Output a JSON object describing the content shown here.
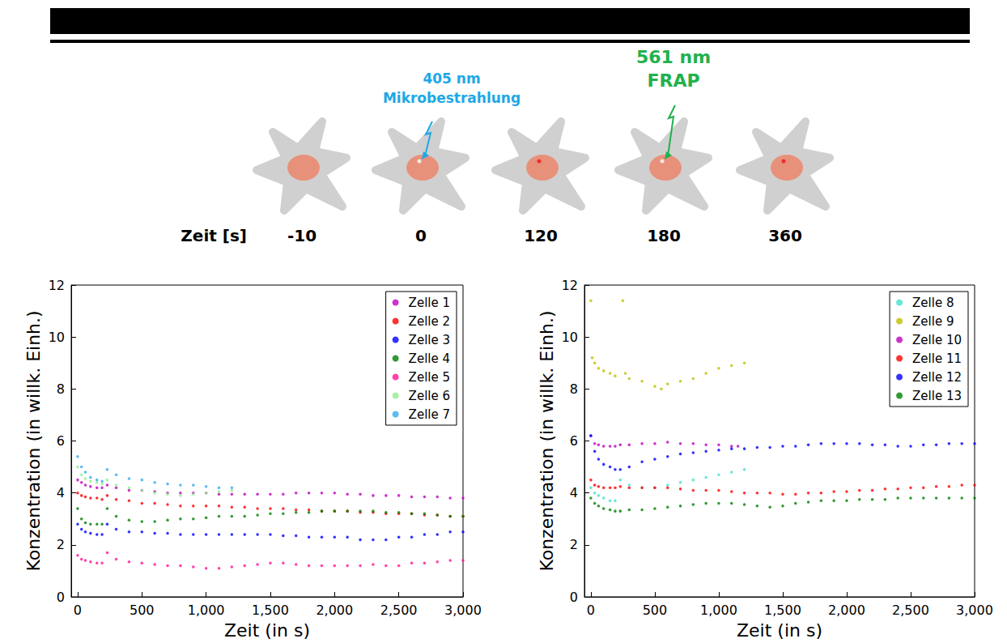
{
  "diagram": {
    "time_label": "Zeit [s]",
    "times": [
      -10,
      0,
      120,
      180,
      360
    ],
    "annotations": [
      {
        "lines": [
          "405 nm",
          "Mikrobestrahlung"
        ],
        "time": 0,
        "color": "#1ea8e6"
      },
      {
        "lines": [
          "561 nm",
          "FRAP"
        ],
        "time": 180,
        "color": "#22b14c"
      }
    ]
  },
  "chart_data": [
    {
      "type": "scatter",
      "x_label": "Zeit (in s)",
      "y_label": "Konzentration (in willk. Einh.)",
      "xlim": [
        -50,
        3000
      ],
      "xticks": [
        0,
        500,
        1000,
        1500,
        2000,
        2500,
        3000
      ],
      "ylim": [
        0,
        12
      ],
      "yticks": [
        0,
        2,
        4,
        6,
        8,
        10,
        12
      ],
      "grid": false,
      "legend": "upper right",
      "marker": "circle",
      "series": [
        {
          "name": "Zelle 1",
          "color": "#bf00bf",
          "x": [
            0,
            30,
            60,
            100,
            150,
            190,
            230,
            300,
            400,
            500,
            600,
            700,
            800,
            900,
            1000,
            1100,
            1200,
            1300,
            1400,
            1500,
            1600,
            1700,
            1800,
            1900,
            2000,
            2100,
            2200,
            2300,
            2400,
            2500,
            2600,
            2700,
            2800,
            2900,
            3000
          ],
          "values": [
            4.5,
            4.4,
            4.3,
            4.25,
            4.2,
            4.2,
            4.3,
            4.2,
            4.1,
            4.1,
            4.05,
            4.0,
            4.0,
            4.0,
            4.0,
            3.95,
            3.95,
            3.95,
            3.95,
            3.95,
            3.95,
            4.0,
            4.0,
            4.0,
            4.0,
            3.95,
            3.95,
            3.9,
            3.9,
            3.9,
            3.85,
            3.85,
            3.85,
            3.8,
            3.8
          ]
        },
        {
          "name": "Zelle 2",
          "color": "#ff0000",
          "x": [
            0,
            30,
            60,
            100,
            150,
            190,
            230,
            300,
            400,
            500,
            600,
            700,
            800,
            900,
            1000,
            1100,
            1200,
            1300,
            1400,
            1500,
            1600,
            1700,
            1800,
            1900,
            2000,
            2100,
            2200,
            2300,
            2400,
            2500,
            2600,
            2700,
            2800,
            2900,
            3000
          ],
          "values": [
            4.0,
            3.9,
            3.85,
            3.8,
            3.8,
            3.75,
            3.9,
            3.75,
            3.7,
            3.6,
            3.6,
            3.55,
            3.5,
            3.5,
            3.5,
            3.5,
            3.45,
            3.45,
            3.4,
            3.4,
            3.4,
            3.35,
            3.35,
            3.3,
            3.3,
            3.3,
            3.25,
            3.25,
            3.2,
            3.2,
            3.2,
            3.15,
            3.15,
            3.1,
            3.1
          ]
        },
        {
          "name": "Zelle 3",
          "color": "#0000ff",
          "x": [
            0,
            30,
            60,
            100,
            150,
            190,
            230,
            300,
            400,
            500,
            600,
            700,
            800,
            900,
            1000,
            1100,
            1200,
            1300,
            1400,
            1500,
            1600,
            1700,
            1800,
            1900,
            2000,
            2100,
            2200,
            2300,
            2400,
            2500,
            2600,
            2700,
            2800,
            2900,
            3000
          ],
          "values": [
            2.8,
            2.6,
            2.5,
            2.45,
            2.4,
            2.4,
            2.8,
            2.6,
            2.5,
            2.5,
            2.45,
            2.45,
            2.4,
            2.4,
            2.4,
            2.4,
            2.4,
            2.4,
            2.4,
            2.4,
            2.35,
            2.35,
            2.3,
            2.3,
            2.3,
            2.3,
            2.2,
            2.2,
            2.2,
            2.3,
            2.3,
            2.4,
            2.4,
            2.5,
            2.5
          ]
        },
        {
          "name": "Zelle 4",
          "color": "#008000",
          "x": [
            0,
            30,
            60,
            100,
            150,
            190,
            230,
            300,
            400,
            500,
            600,
            700,
            800,
            900,
            1000,
            1100,
            1200,
            1300,
            1400,
            1500,
            1600,
            1700,
            1800,
            1900,
            2000,
            2100,
            2200,
            2300,
            2400,
            2500,
            2600,
            2700,
            2800,
            2900,
            3000
          ],
          "values": [
            3.4,
            3.0,
            2.85,
            2.8,
            2.8,
            2.8,
            3.4,
            3.1,
            2.95,
            2.9,
            2.9,
            2.95,
            3.0,
            3.0,
            3.05,
            3.1,
            3.1,
            3.1,
            3.15,
            3.2,
            3.2,
            3.25,
            3.25,
            3.3,
            3.3,
            3.3,
            3.3,
            3.3,
            3.25,
            3.25,
            3.2,
            3.2,
            3.15,
            3.1,
            3.1
          ]
        },
        {
          "name": "Zelle 5",
          "color": "#ff1493",
          "x": [
            0,
            30,
            60,
            100,
            150,
            190,
            230,
            300,
            400,
            500,
            600,
            700,
            800,
            900,
            1000,
            1100,
            1200,
            1300,
            1400,
            1500,
            1600,
            1700,
            1800,
            1900,
            2000,
            2100,
            2200,
            2300,
            2400,
            2500,
            2600,
            2700,
            2800,
            2900,
            3000
          ],
          "values": [
            1.6,
            1.45,
            1.4,
            1.35,
            1.3,
            1.3,
            1.7,
            1.45,
            1.35,
            1.3,
            1.25,
            1.2,
            1.2,
            1.15,
            1.1,
            1.1,
            1.15,
            1.2,
            1.25,
            1.3,
            1.3,
            1.25,
            1.2,
            1.2,
            1.2,
            1.2,
            1.2,
            1.25,
            1.2,
            1.2,
            1.3,
            1.3,
            1.35,
            1.4,
            1.4
          ]
        },
        {
          "name": "Zelle 6",
          "color": "#90ee90",
          "x": [
            0,
            30,
            60,
            100,
            150,
            190,
            230,
            300,
            400,
            500,
            600,
            700,
            800,
            900,
            1000,
            1100,
            1200
          ],
          "values": [
            5.0,
            4.7,
            4.55,
            4.45,
            4.4,
            4.35,
            4.5,
            4.3,
            4.2,
            4.1,
            4.0,
            3.95,
            3.9,
            3.95,
            4.0,
            4.05,
            4.1
          ]
        },
        {
          "name": "Zelle 7",
          "color": "#33aaee",
          "x": [
            0,
            30,
            60,
            100,
            150,
            190,
            230,
            300,
            400,
            500,
            600,
            700,
            800,
            900,
            1000,
            1100,
            1200
          ],
          "values": [
            5.4,
            5.0,
            4.8,
            4.6,
            4.5,
            4.45,
            4.9,
            4.7,
            4.55,
            4.5,
            4.4,
            4.35,
            4.3,
            4.3,
            4.25,
            4.2,
            4.2
          ]
        }
      ]
    },
    {
      "type": "scatter",
      "x_label": "Zeit (in s)",
      "y_label": "Konzentration (in willk. Einh.)",
      "xlim": [
        -50,
        3000
      ],
      "xticks": [
        0,
        500,
        1000,
        1500,
        2000,
        2500,
        3000
      ],
      "ylim": [
        0,
        12
      ],
      "yticks": [
        0,
        2,
        4,
        6,
        8,
        10,
        12
      ],
      "grid": false,
      "legend": "upper right",
      "marker": "circle",
      "series": [
        {
          "name": "Zelle 8",
          "color": "#40e0d0",
          "x": [
            0,
            30,
            60,
            100,
            150,
            190,
            230,
            300,
            400,
            500,
            600,
            700,
            800,
            900,
            1000,
            1100,
            1200
          ],
          "values": [
            4.2,
            4.0,
            3.9,
            3.8,
            3.7,
            3.7,
            4.5,
            4.3,
            4.2,
            4.2,
            4.3,
            4.4,
            4.5,
            4.6,
            4.7,
            4.8,
            4.9
          ]
        },
        {
          "name": "Zelle 9",
          "color": "#bfbf00",
          "x": [
            0,
            10,
            30,
            60,
            100,
            150,
            190,
            250,
            270,
            300,
            400,
            500,
            550,
            600,
            700,
            800,
            900,
            1000,
            1100,
            1200
          ],
          "values": [
            11.4,
            9.2,
            9.0,
            8.8,
            8.7,
            8.6,
            8.5,
            11.4,
            8.6,
            8.4,
            8.3,
            8.1,
            8.0,
            8.2,
            8.3,
            8.4,
            8.6,
            8.8,
            8.9,
            9.0
          ]
        },
        {
          "name": "Zelle 10",
          "color": "#bf00bf",
          "x": [
            0,
            30,
            60,
            100,
            150,
            190,
            230,
            300,
            400,
            500,
            600,
            700,
            800,
            900,
            1000,
            1100,
            1150
          ],
          "values": [
            6.2,
            5.9,
            5.85,
            5.8,
            5.8,
            5.8,
            5.85,
            5.85,
            5.9,
            5.9,
            5.95,
            5.9,
            5.9,
            5.85,
            5.85,
            5.8,
            5.8
          ]
        },
        {
          "name": "Zelle 11",
          "color": "#ff0000",
          "x": [
            0,
            30,
            60,
            100,
            150,
            190,
            230,
            300,
            400,
            500,
            600,
            700,
            800,
            900,
            1000,
            1100,
            1200,
            1300,
            1400,
            1500,
            1600,
            1700,
            1800,
            1900,
            2000,
            2100,
            2200,
            2300,
            2400,
            2500,
            2600,
            2700,
            2800,
            2900,
            3000
          ],
          "values": [
            4.5,
            4.3,
            4.25,
            4.2,
            4.2,
            4.2,
            4.25,
            4.2,
            4.2,
            4.2,
            4.2,
            4.15,
            4.1,
            4.1,
            4.1,
            4.05,
            4.0,
            4.0,
            4.0,
            3.95,
            3.95,
            4.0,
            4.0,
            4.05,
            4.05,
            4.1,
            4.1,
            4.15,
            4.15,
            4.2,
            4.2,
            4.25,
            4.25,
            4.3,
            4.3
          ]
        },
        {
          "name": "Zelle 12",
          "color": "#0000ff",
          "x": [
            0,
            30,
            60,
            100,
            150,
            190,
            230,
            300,
            400,
            500,
            600,
            700,
            800,
            900,
            1000,
            1100,
            1200,
            1300,
            1400,
            1500,
            1600,
            1700,
            1800,
            1900,
            2000,
            2100,
            2200,
            2300,
            2400,
            2500,
            2600,
            2700,
            2800,
            2900,
            3000
          ],
          "values": [
            6.2,
            5.6,
            5.3,
            5.1,
            5.0,
            4.9,
            4.9,
            5.0,
            5.2,
            5.3,
            5.4,
            5.5,
            5.55,
            5.6,
            5.65,
            5.7,
            5.7,
            5.75,
            5.75,
            5.8,
            5.8,
            5.85,
            5.9,
            5.9,
            5.9,
            5.9,
            5.85,
            5.85,
            5.8,
            5.8,
            5.85,
            5.85,
            5.9,
            5.9,
            5.9
          ]
        },
        {
          "name": "Zelle 13",
          "color": "#008000",
          "x": [
            0,
            30,
            60,
            100,
            150,
            190,
            230,
            300,
            400,
            500,
            600,
            700,
            800,
            900,
            1000,
            1100,
            1200,
            1300,
            1400,
            1500,
            1600,
            1700,
            1800,
            1900,
            2000,
            2100,
            2200,
            2300,
            2400,
            2500,
            2600,
            2700,
            2800,
            2900,
            3000
          ],
          "values": [
            3.8,
            3.6,
            3.5,
            3.4,
            3.35,
            3.3,
            3.3,
            3.35,
            3.35,
            3.4,
            3.45,
            3.5,
            3.55,
            3.6,
            3.6,
            3.6,
            3.55,
            3.5,
            3.45,
            3.5,
            3.6,
            3.65,
            3.7,
            3.7,
            3.7,
            3.75,
            3.75,
            3.75,
            3.8,
            3.8,
            3.8,
            3.8,
            3.8,
            3.8,
            3.8
          ]
        }
      ]
    }
  ]
}
